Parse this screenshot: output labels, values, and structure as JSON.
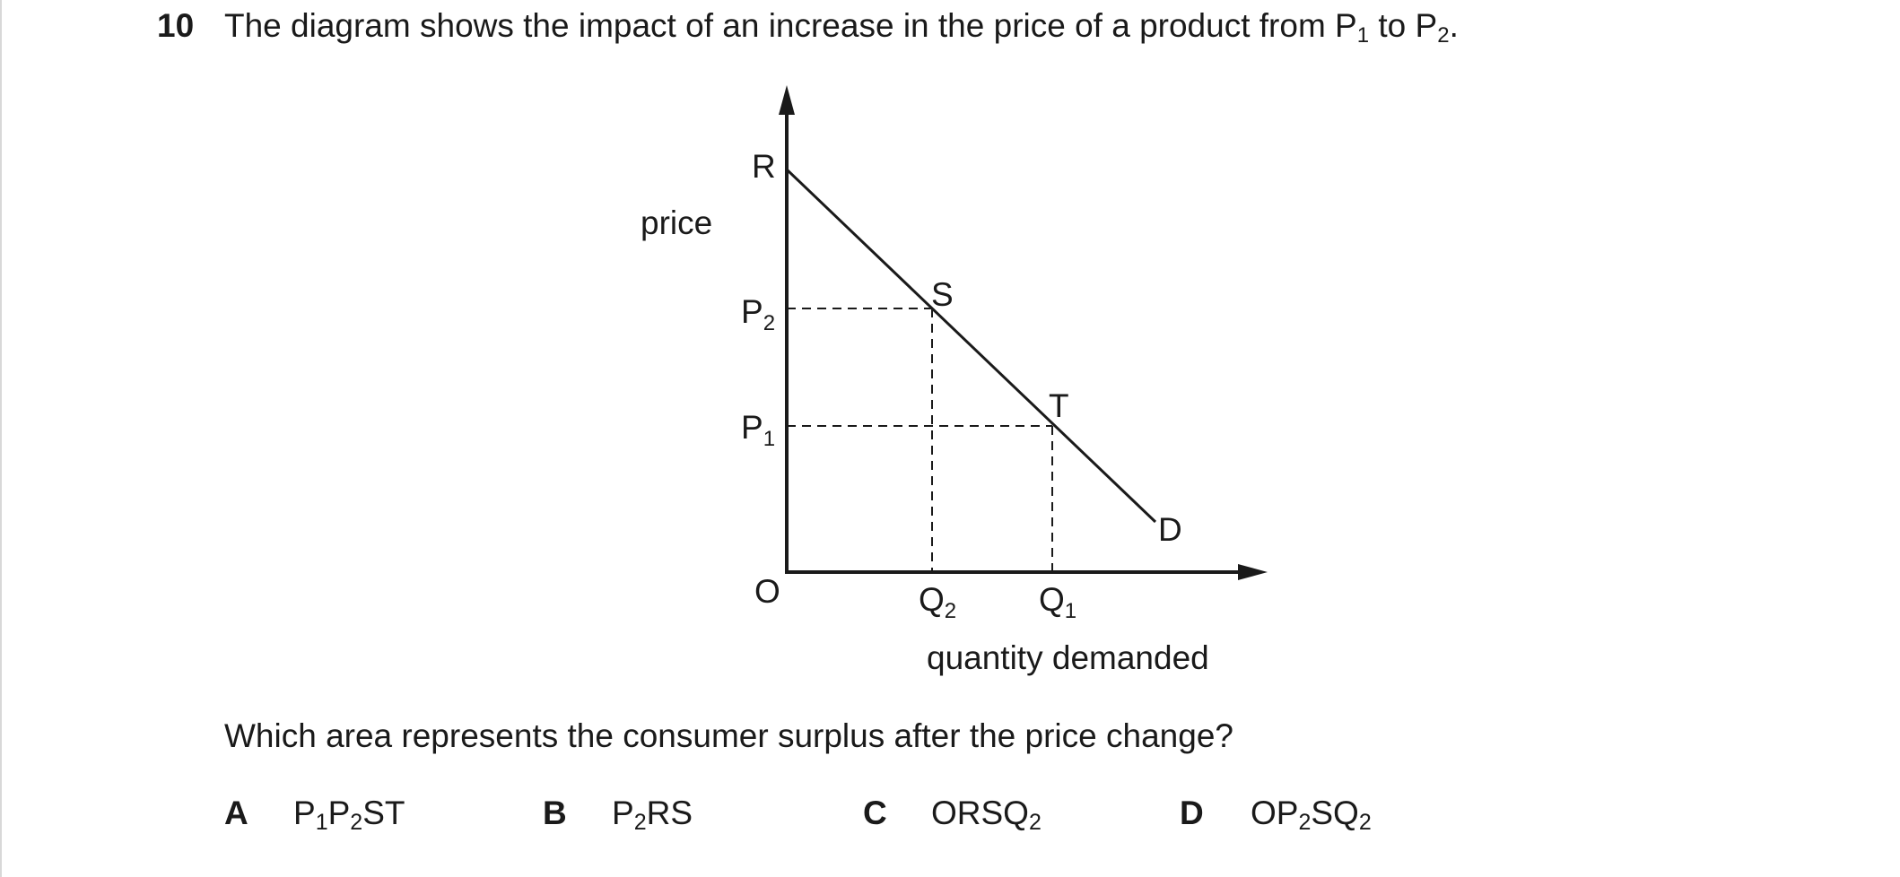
{
  "question": {
    "number": "10",
    "text_before": "The diagram shows the impact of an increase in the price of a product from P",
    "p1_sub": "1",
    "text_mid": " to P",
    "p2_sub": "2",
    "text_end": "."
  },
  "diagram": {
    "y_axis_label": "price",
    "x_axis_label": "quantity demanded",
    "origin_label": "O",
    "point_labels": {
      "r": "R",
      "s": "S",
      "t": "T",
      "d": "D"
    },
    "p2_label": "P",
    "p2_sub": "2",
    "p1_label": "P",
    "p1_sub": "1",
    "q2_label": "Q",
    "q2_sub": "2",
    "q1_label": "Q",
    "q1_sub": "1"
  },
  "prompt": "Which area represents the consumer surplus after the price change?",
  "options": [
    {
      "letter": "A",
      "parts": [
        "P",
        "1",
        "P",
        "2",
        "ST"
      ]
    },
    {
      "letter": "B",
      "parts": [
        "P",
        "2",
        "RS"
      ]
    },
    {
      "letter": "C",
      "parts": [
        "ORSQ",
        "2"
      ]
    },
    {
      "letter": "D",
      "parts": [
        "OP",
        "2",
        "SQ",
        "2"
      ]
    }
  ]
}
